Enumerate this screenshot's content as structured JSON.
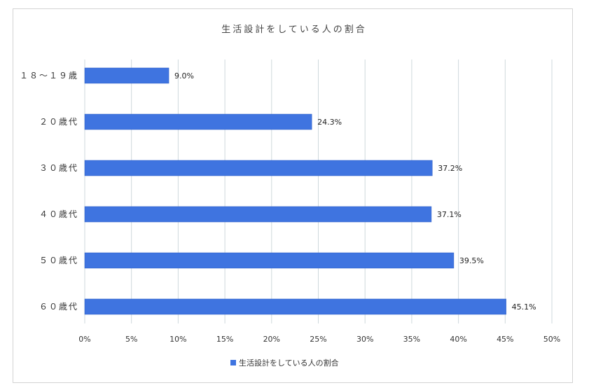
{
  "chart_data": {
    "type": "bar",
    "orientation": "horizontal",
    "title": "生活設計をしている人の割合",
    "categories": [
      "１８〜１９歳",
      "２０歳代",
      "３０歳代",
      "４０歳代",
      "５０歳代",
      "６０歳代"
    ],
    "series": [
      {
        "name": "生活設計をしている人の割合",
        "values": [
          9.0,
          24.3,
          37.2,
          37.1,
          39.5,
          45.1
        ],
        "labels": [
          "9.0%",
          "24.3%",
          "37.2%",
          "37.1%",
          "39.5%",
          "45.1%"
        ]
      }
    ],
    "xlim": [
      0,
      50
    ],
    "xticks": [
      0,
      5,
      10,
      15,
      20,
      25,
      30,
      35,
      40,
      45,
      50
    ],
    "xtick_labels": [
      "0%",
      "5%",
      "10%",
      "15%",
      "20%",
      "25%",
      "30%",
      "35%",
      "40%",
      "45%",
      "50%"
    ],
    "grid": "vertical",
    "legend": "bottom",
    "colors": {
      "bar": "#3f74e0",
      "bar_edge": "#2f5fc4",
      "grid": "#cfd8dc"
    }
  }
}
